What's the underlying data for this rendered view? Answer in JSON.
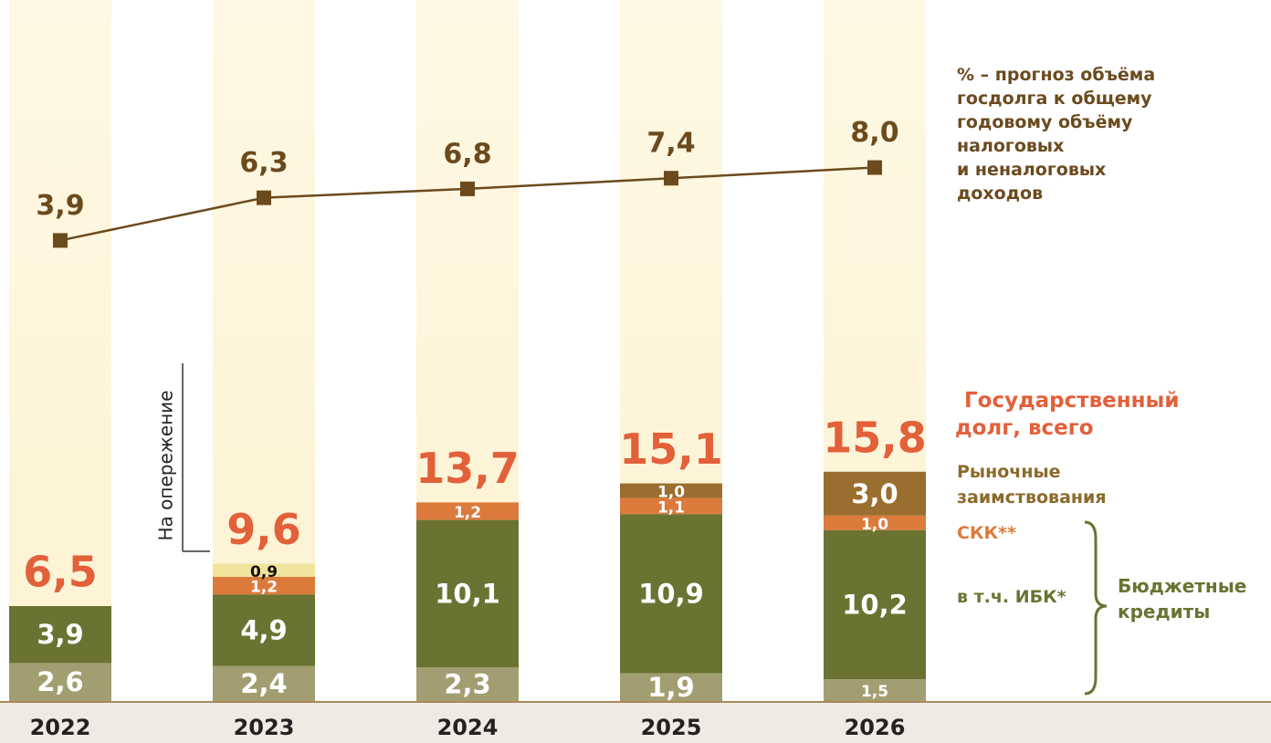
{
  "chart_data": {
    "type": "bar",
    "categories": [
      "2022",
      "2023",
      "2024",
      "2025",
      "2026"
    ],
    "ylim": [
      0,
      47
    ],
    "y2lim": [
      -22,
      16.6
    ],
    "series": [
      {
        "color": "#a39e72",
        "values": [
          2.6,
          2.4,
          2.3,
          1.9,
          1.5
        ],
        "value_labels": [
          "2,6",
          "2,4",
          "2,3",
          "1,9",
          "1,5"
        ]
      },
      {
        "name": "в т.ч. ИБК*",
        "color": "#6a7332",
        "values": [
          3.9,
          4.9,
          10.1,
          10.9,
          10.2
        ],
        "value_labels": [
          "3,9",
          "4,9",
          "10,1",
          "10,9",
          "10,2"
        ]
      },
      {
        "name": "СКК**",
        "color": "#dc7a3c",
        "values": [
          null,
          1.2,
          1.2,
          1.1,
          1.0
        ],
        "value_labels": [
          null,
          "1,2",
          "1,2",
          "1,1",
          "1,0"
        ]
      },
      {
        "name": "На опережение",
        "color": "#f1e49c",
        "values": [
          null,
          0.9,
          null,
          null,
          null
        ],
        "value_labels": [
          null,
          "0,9",
          null,
          null,
          null
        ]
      },
      {
        "name": "Рыночные заимствования",
        "color": "#9a6e2e",
        "values": [
          null,
          null,
          null,
          1.0,
          3.0
        ],
        "value_labels": [
          null,
          null,
          null,
          "1,0",
          "3,0"
        ]
      }
    ],
    "totals": {
      "values": [
        6.5,
        9.6,
        13.7,
        15.1,
        15.8
      ],
      "value_labels": [
        "6,5",
        "9,6",
        "13,7",
        "15,1",
        "15,8"
      ],
      "color": "#e2603a",
      "label": [
        "Государственный",
        "долг, всего"
      ]
    },
    "line": {
      "type": "line",
      "axis": "y2",
      "color": "#6b4a1e",
      "values": [
        3.9,
        6.3,
        6.8,
        7.4,
        8.0
      ],
      "value_labels": [
        "3,9",
        "6,3",
        "6,8",
        "7,4",
        "8,0"
      ],
      "label": [
        "% – прогноз объёма",
        "госдолга к общему",
        "годовому объёму",
        "налоговых",
        "и неналоговых",
        "доходов"
      ]
    },
    "brace_label": [
      "Бюджетные",
      "кредиты"
    ]
  }
}
